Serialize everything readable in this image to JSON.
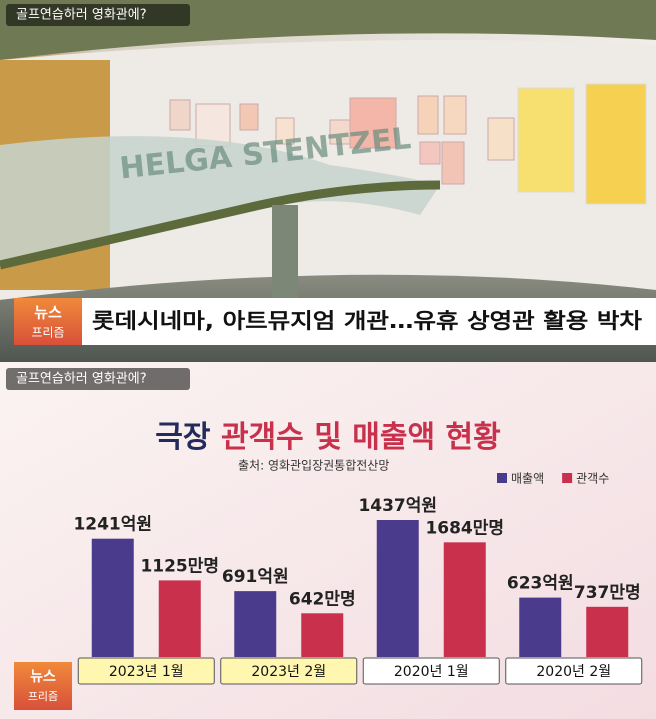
{
  "screen": {
    "tag": "골프연습하러 영화관에?",
    "logo": [
      "뉴스",
      "프리즘"
    ],
    "headline": "롯데시네마, 아트뮤지엄 개관…유휴 상영관 활용 박차",
    "photo_sign": "HELGA STENTZEL"
  },
  "chart_screen": {
    "tag": "골프연습하러 영화관에?",
    "logo": [
      "뉴스",
      "프리즘"
    ]
  },
  "chart_data": {
    "type": "bar",
    "title": [
      "극장",
      "관객수 및 매출액 현황"
    ],
    "source": "출처: 영화관입장권통합전산망",
    "categories": [
      "2023년 1월",
      "2023년 2월",
      "2020년 1월",
      "2020년 2월"
    ],
    "category_colors": [
      "#fff7b0",
      "#fff7b0",
      "#ffffff",
      "#ffffff"
    ],
    "series": [
      {
        "name": "매출액",
        "color": "#4b3b8c",
        "values": [
          1241,
          691,
          1437,
          623
        ],
        "value_labels": [
          "1241억원",
          "691억원",
          "1437억원",
          "623억원"
        ]
      },
      {
        "name": "관객수",
        "color": "#c8304c",
        "axis": "y2",
        "values": [
          1125,
          642,
          1684,
          737
        ],
        "value_labels": [
          "1125만명",
          "642만명",
          "1684만명",
          "737만명"
        ]
      }
    ],
    "ylim": [
      0,
      1500
    ],
    "y2lim": [
      0,
      2100
    ],
    "legend": "upper right"
  }
}
